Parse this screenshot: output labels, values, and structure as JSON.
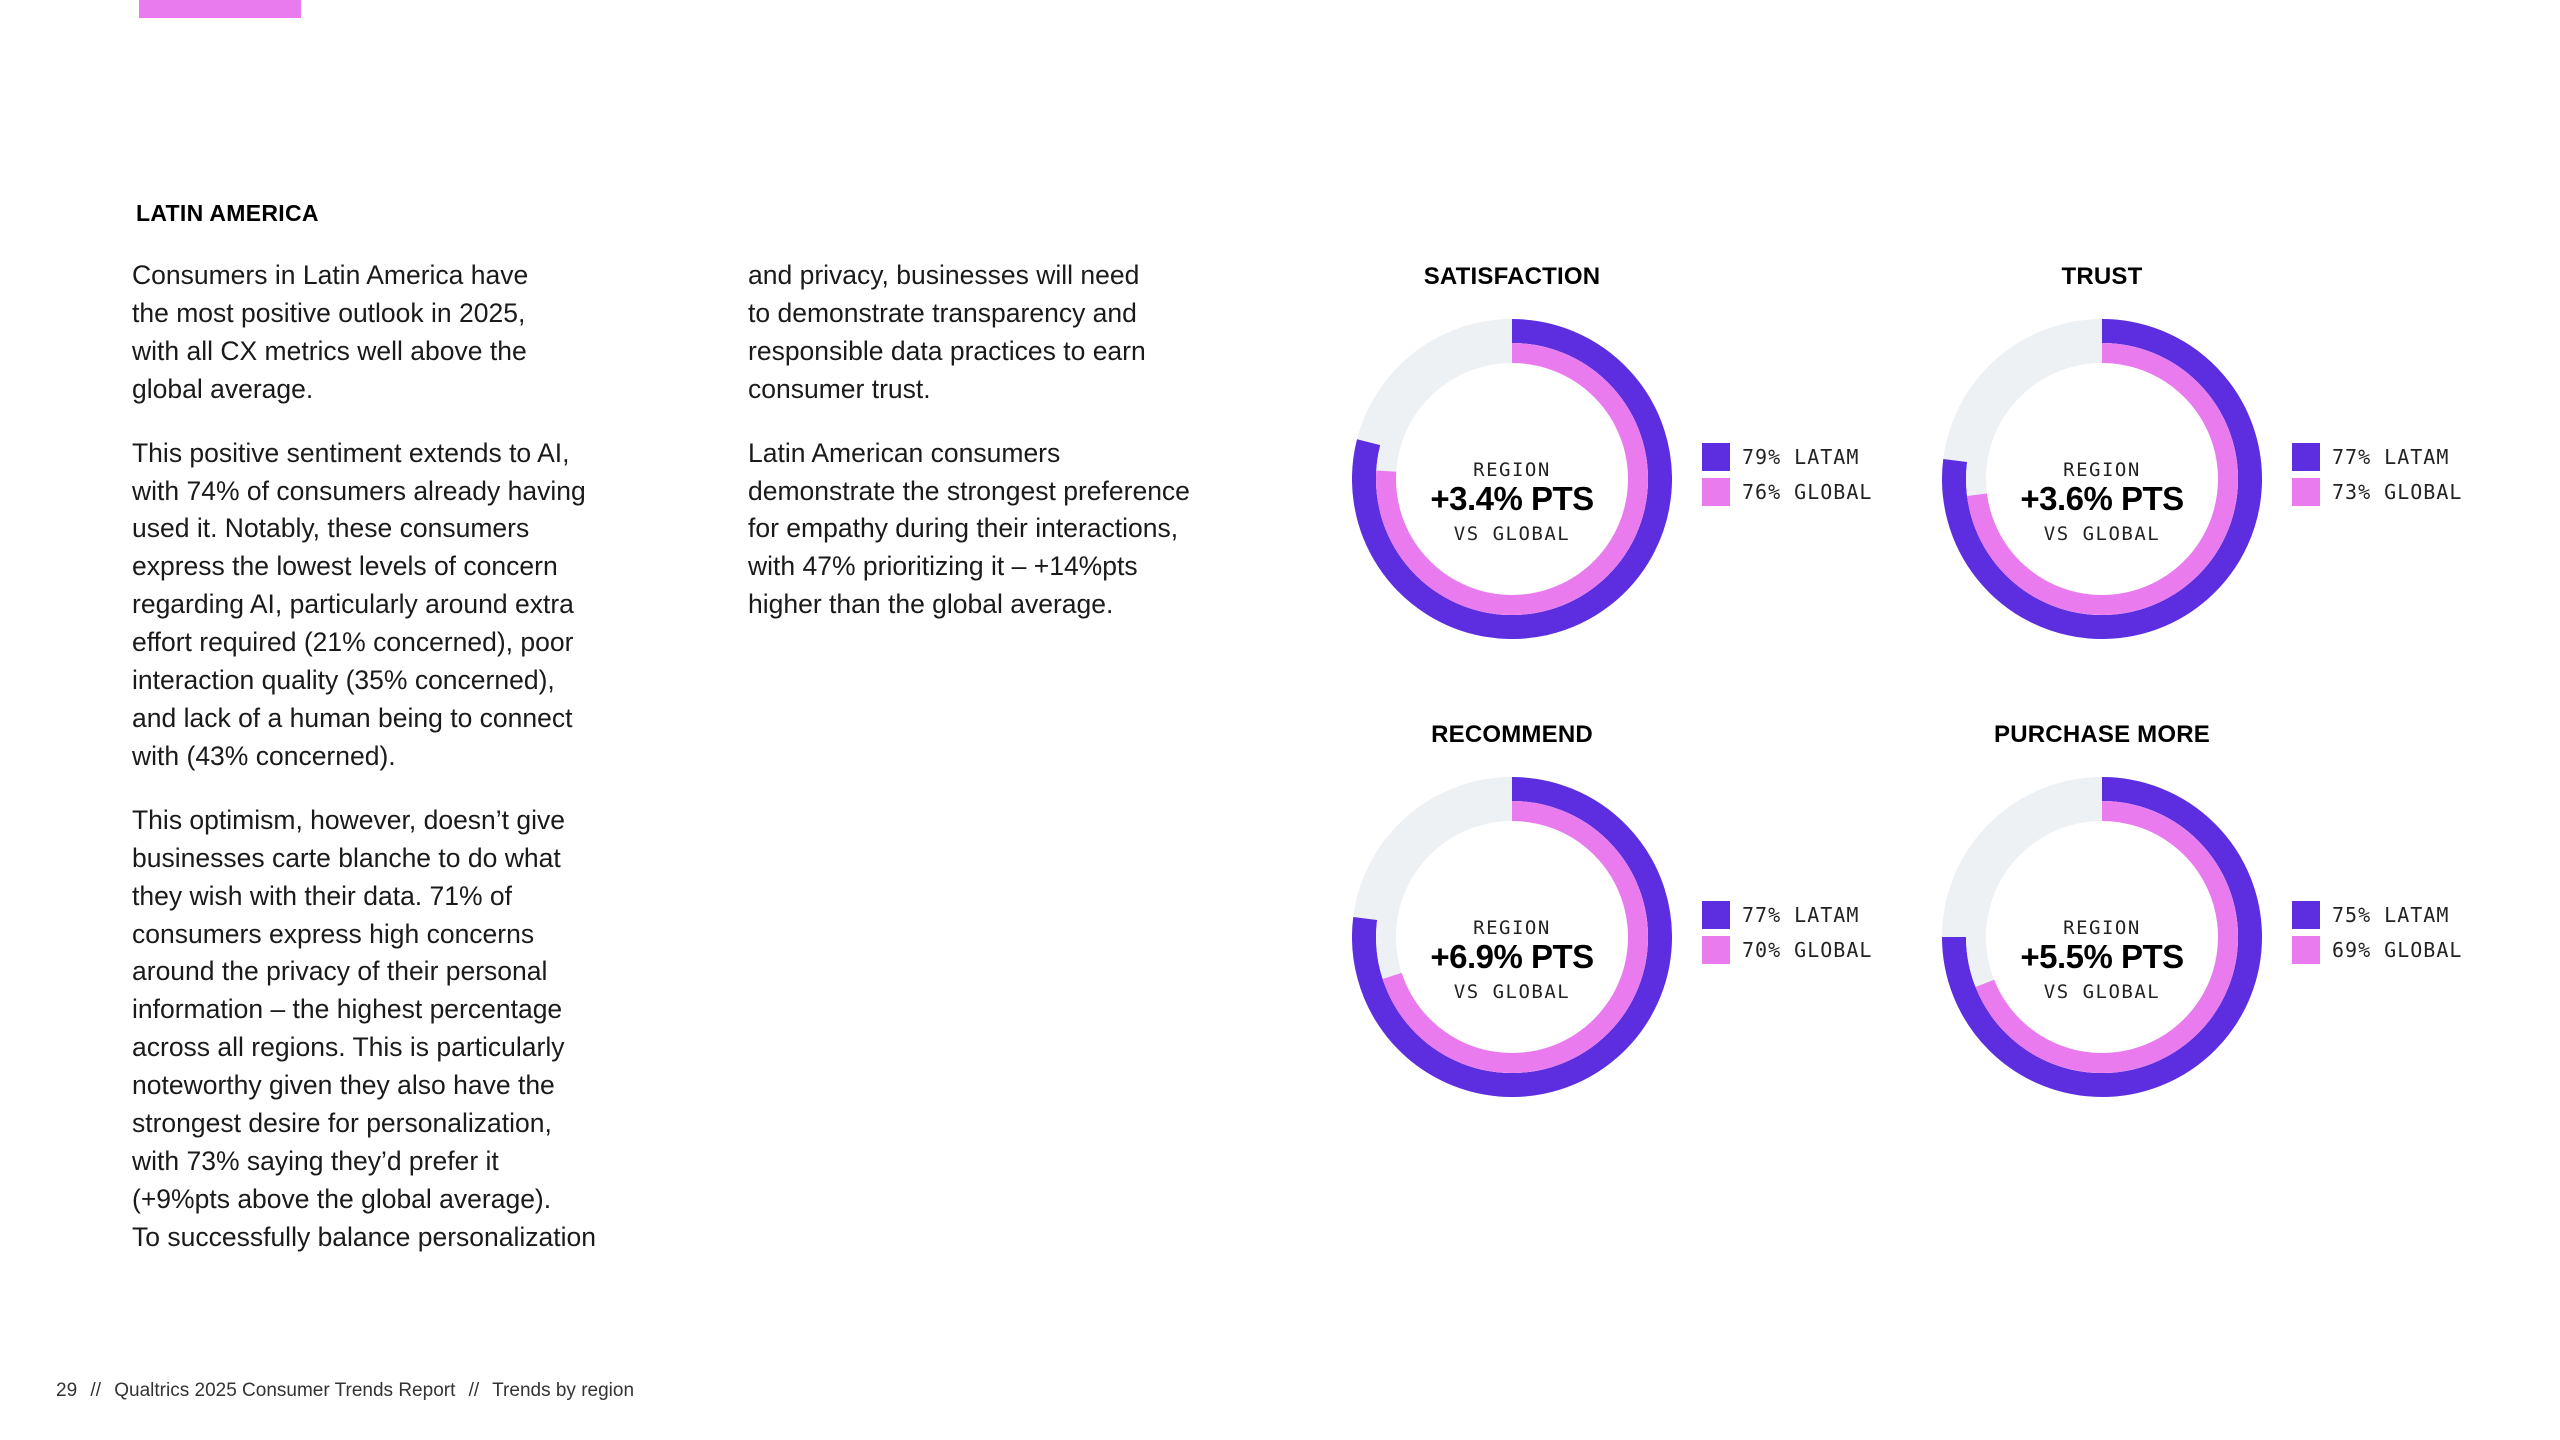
{
  "header": {
    "section_title": "LATIN AMERICA"
  },
  "body_text": {
    "left": [
      "Consumers in Latin America have\nthe most positive outlook in 2025,\nwith all CX metrics well above the\nglobal average.",
      "This positive sentiment extends to AI,\nwith 74% of consumers already having\nused it. Notably, these consumers\nexpress the lowest levels of concern\nregarding AI, particularly around extra\neffort required (21% concerned), poor\ninteraction quality (35% concerned),\nand lack of a human being to connect\nwith (43% concerned).",
      "This optimism, however, doesn’t give\nbusinesses carte blanche to do what\nthey wish with their data. 71% of\nconsumers express high concerns\naround the privacy of their personal\ninformation – the highest percentage\nacross all regions. This is particularly\nnoteworthy given they also have the\nstrongest desire for personalization,\nwith 73% saying they’d prefer it\n(+9%pts above the global average).\nTo successfully balance personalization"
    ],
    "right": [
      "and privacy, businesses will need\nto demonstrate transparency and\nresponsible data practices to earn\nconsumer trust.",
      "Latin American consumers\ndemonstrate the strongest preference\nfor empathy during their interactions,\nwith 47% prioritizing it – +14%pts\nhigher than the global average."
    ]
  },
  "colors": {
    "latam": "#5c2ee0",
    "global": "#e97bef",
    "track": "#edf1f4",
    "accent": "#e97bef"
  },
  "chart_data": [
    {
      "type": "pie",
      "title": "SATISFACTION",
      "center": {
        "top": "REGION",
        "value": "+3.4% PTS",
        "bottom": "VS GLOBAL"
      },
      "series": [
        {
          "name": "LATAM",
          "value": 79,
          "label": "79% LATAM"
        },
        {
          "name": "GLOBAL",
          "value": 76,
          "label": "76% GLOBAL"
        }
      ]
    },
    {
      "type": "pie",
      "title": "TRUST",
      "center": {
        "top": "REGION",
        "value": "+3.6% PTS",
        "bottom": "VS GLOBAL"
      },
      "series": [
        {
          "name": "LATAM",
          "value": 77,
          "label": "77% LATAM"
        },
        {
          "name": "GLOBAL",
          "value": 73,
          "label": "73% GLOBAL"
        }
      ]
    },
    {
      "type": "pie",
      "title": "RECOMMEND",
      "center": {
        "top": "REGION",
        "value": "+6.9% PTS",
        "bottom": "VS GLOBAL"
      },
      "series": [
        {
          "name": "LATAM",
          "value": 77,
          "label": "77% LATAM"
        },
        {
          "name": "GLOBAL",
          "value": 70,
          "label": "70% GLOBAL"
        }
      ]
    },
    {
      "type": "pie",
      "title": "PURCHASE MORE",
      "center": {
        "top": "REGION",
        "value": "+5.5% PTS",
        "bottom": "VS GLOBAL"
      },
      "series": [
        {
          "name": "LATAM",
          "value": 75,
          "label": "75% LATAM"
        },
        {
          "name": "GLOBAL",
          "value": 69,
          "label": "69% GLOBAL"
        }
      ]
    }
  ],
  "footer": {
    "page_number": "29",
    "separator": "//",
    "report_title": "Qualtrics 2025 Consumer Trends Report",
    "section": "Trends by region"
  }
}
